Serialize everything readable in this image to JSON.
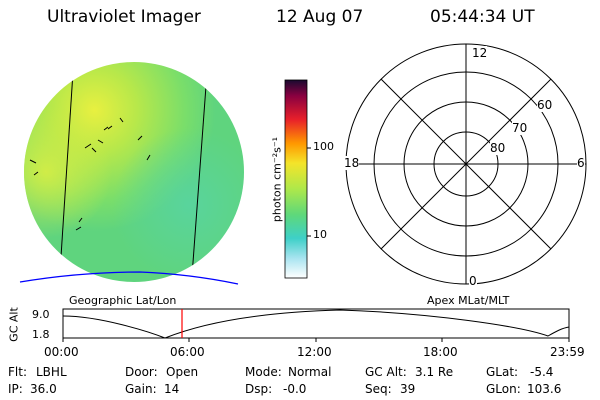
{
  "header": {
    "instrument": "Ultraviolet Imager",
    "date": "12 Aug 07",
    "time": "05:44:34 UT"
  },
  "colorbar": {
    "label": "photon cm⁻²s⁻¹",
    "ticks": [
      "100",
      "10"
    ]
  },
  "polar_plot": {
    "mlt_labels": {
      "top": "12",
      "left": "18",
      "right": "6",
      "bottom": "0"
    },
    "lat_labels": [
      "60",
      "70",
      "80"
    ]
  },
  "panel_labels": {
    "left": "Geographic Lat/Lon",
    "right": "Apex MLat/MLT"
  },
  "altitude_track": {
    "axis_label": "GC Alt",
    "y_ticks": [
      "9.0",
      "1.8"
    ],
    "x_ticks": [
      "00:00",
      "06:00",
      "12:00",
      "18:00",
      "23:59"
    ]
  },
  "footer": {
    "rows": [
      [
        {
          "key": "Flt:",
          "val": "LBHL"
        },
        {
          "key": "Door:",
          "val": "Open"
        },
        {
          "key": "Mode:",
          "val": "Normal"
        },
        {
          "key": "GC Alt:",
          "val": "3.1 Re"
        },
        {
          "key": "GLat:",
          "val": "-5.4"
        }
      ],
      [
        {
          "key": "IP:",
          "val": "36.0"
        },
        {
          "key": "Gain:",
          "val": "14"
        },
        {
          "key": "Dsp:",
          "val": "-0.0"
        },
        {
          "key": "Seq:",
          "val": "39"
        },
        {
          "key": "GLon:",
          "val": "103.6"
        }
      ]
    ]
  },
  "colors": {
    "cursor": "#ff0000",
    "coast": "#0000ff",
    "earth_fill": "#66dd66",
    "earth_bright": "#d8ee44"
  }
}
